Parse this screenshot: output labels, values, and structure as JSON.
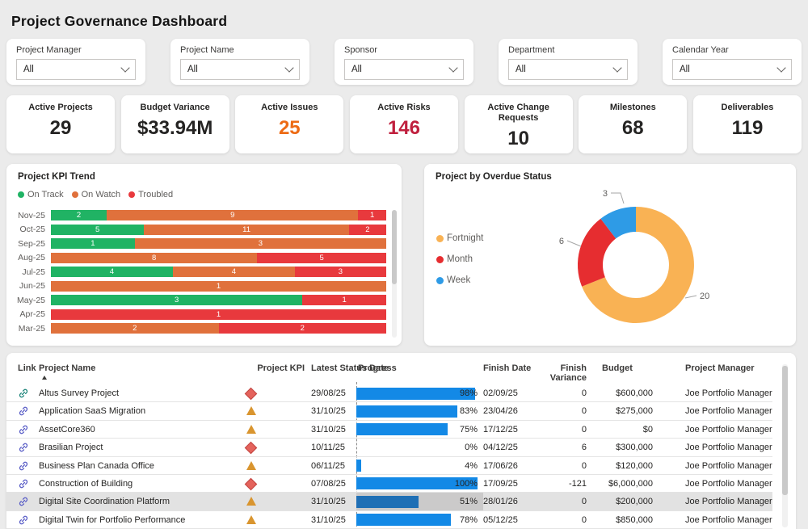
{
  "title": "Project Governance Dashboard",
  "filters": [
    {
      "label": "Project Manager",
      "value": "All"
    },
    {
      "label": "Project Name",
      "value": "All"
    },
    {
      "label": "Sponsor",
      "value": "All"
    },
    {
      "label": "Department",
      "value": "All"
    },
    {
      "label": "Calendar Year",
      "value": "All"
    }
  ],
  "kpis": [
    {
      "label": "Active Projects",
      "value": "29",
      "color": "#252423"
    },
    {
      "label": "Budget Variance",
      "value": "$33.94M",
      "color": "#252423"
    },
    {
      "label": "Active Issues",
      "value": "25",
      "color": "#ED6B15"
    },
    {
      "label": "Active Risks",
      "value": "146",
      "color": "#C0203E"
    },
    {
      "label": "Active Change Requests",
      "value": "10",
      "color": "#252423"
    },
    {
      "label": "Milestones",
      "value": "68",
      "color": "#252423"
    },
    {
      "label": "Deliverables",
      "value": "119",
      "color": "#252423"
    }
  ],
  "kpi_trend": {
    "title": "Project KPI Trend",
    "legend": [
      {
        "label": "On Track",
        "color": "#20B364"
      },
      {
        "label": "On Watch",
        "color": "#E0713C"
      },
      {
        "label": "Troubled",
        "color": "#E8393D"
      }
    ],
    "rows": [
      {
        "month": "Nov-25",
        "on_track": 2,
        "on_watch": 9,
        "troubled": 1
      },
      {
        "month": "Oct-25",
        "on_track": 5,
        "on_watch": 11,
        "troubled": 2
      },
      {
        "month": "Sep-25",
        "on_track": 1,
        "on_watch": 3,
        "troubled": 0
      },
      {
        "month": "Aug-25",
        "on_track": 0,
        "on_watch": 8,
        "troubled": 5
      },
      {
        "month": "Jul-25",
        "on_track": 4,
        "on_watch": 4,
        "troubled": 3
      },
      {
        "month": "Jun-25",
        "on_track": 0,
        "on_watch": 1,
        "troubled": 0
      },
      {
        "month": "May-25",
        "on_track": 3,
        "on_watch": 0,
        "troubled": 1
      },
      {
        "month": "Apr-25",
        "on_track": 0,
        "on_watch": 0,
        "troubled": 1
      },
      {
        "month": "Mar-25",
        "on_track": 0,
        "on_watch": 2,
        "troubled": 2
      }
    ]
  },
  "overdue": {
    "title": "Project by Overdue Status",
    "legend": [
      {
        "label": "Fortnight",
        "color": "#F9B254",
        "value": "20"
      },
      {
        "label": "Month",
        "color": "#E62D30",
        "value": "6"
      },
      {
        "label": "Week",
        "color": "#2E9BE6",
        "value": "3"
      }
    ]
  },
  "table": {
    "columns": [
      "Link",
      "Project Name",
      "Project KPI",
      "Latest Status Date",
      "Progress",
      "Finish Date",
      "Finish Variance",
      "Budget",
      "Project Manager"
    ],
    "rows": [
      {
        "project_name": "Altus Survey Project",
        "kpi": "diamond",
        "status_date": "29/08/25",
        "progress": 98,
        "progress_label": "98%",
        "finish_date": "02/09/25",
        "finish_variance": "0",
        "budget": "$600,000",
        "project_manager": "Joe Portfolio Manager",
        "link_color": "#1F857B",
        "selected": false
      },
      {
        "project_name": "Application SaaS Migration",
        "kpi": "triangle",
        "status_date": "31/10/25",
        "progress": 83,
        "progress_label": "83%",
        "finish_date": "23/04/26",
        "finish_variance": "0",
        "budget": "$275,000",
        "project_manager": "Joe Portfolio Manager",
        "link_color": "#5B5FC7",
        "selected": false
      },
      {
        "project_name": "AssetCore360",
        "kpi": "triangle",
        "status_date": "31/10/25",
        "progress": 75,
        "progress_label": "75%",
        "finish_date": "17/12/25",
        "finish_variance": "0",
        "budget": "$0",
        "project_manager": "Joe Portfolio Manager",
        "link_color": "#5B5FC7",
        "selected": false
      },
      {
        "project_name": "Brasilian Project",
        "kpi": "diamond",
        "status_date": "10/11/25",
        "progress": 0,
        "progress_label": "0%",
        "finish_date": "04/12/25",
        "finish_variance": "6",
        "budget": "$300,000",
        "project_manager": "Joe Portfolio Manager",
        "link_color": "#5B5FC7",
        "selected": false
      },
      {
        "project_name": "Business Plan Canada Office",
        "kpi": "triangle",
        "status_date": "06/11/25",
        "progress": 4,
        "progress_label": "4%",
        "finish_date": "17/06/26",
        "finish_variance": "0",
        "budget": "$120,000",
        "project_manager": "Joe Portfolio Manager",
        "link_color": "#5B5FC7",
        "selected": false
      },
      {
        "project_name": "Construction of Building",
        "kpi": "diamond",
        "status_date": "07/08/25",
        "progress": 100,
        "progress_label": "100%",
        "finish_date": "17/09/25",
        "finish_variance": "-121",
        "budget": "$6,000,000",
        "project_manager": "Joe Portfolio Manager",
        "link_color": "#5B5FC7",
        "selected": false
      },
      {
        "project_name": "Digital Site Coordination Platform",
        "kpi": "triangle",
        "status_date": "31/10/25",
        "progress": 51,
        "progress_label": "51%",
        "finish_date": "28/01/26",
        "finish_variance": "0",
        "budget": "$200,000",
        "project_manager": "Joe Portfolio Manager",
        "link_color": "#5B5FC7",
        "selected": true
      },
      {
        "project_name": "Digital Twin for Portfolio Performance",
        "kpi": "triangle",
        "status_date": "31/10/25",
        "progress": 78,
        "progress_label": "78%",
        "finish_date": "05/12/25",
        "finish_variance": "0",
        "budget": "$850,000",
        "project_manager": "Joe Portfolio Manager",
        "link_color": "#5B5FC7",
        "selected": false
      }
    ]
  },
  "chart_data": [
    {
      "type": "bar",
      "subtype": "stacked-100-horizontal",
      "title": "Project KPI Trend",
      "categories": [
        "Nov-25",
        "Oct-25",
        "Sep-25",
        "Aug-25",
        "Jul-25",
        "Jun-25",
        "May-25",
        "Apr-25",
        "Mar-25"
      ],
      "series": [
        {
          "name": "On Track",
          "color": "#20B364",
          "values": [
            2,
            5,
            1,
            0,
            4,
            0,
            3,
            0,
            0
          ]
        },
        {
          "name": "On Watch",
          "color": "#E0713C",
          "values": [
            9,
            11,
            3,
            8,
            4,
            1,
            0,
            0,
            2
          ]
        },
        {
          "name": "Troubled",
          "color": "#E8393D",
          "values": [
            1,
            2,
            0,
            5,
            3,
            0,
            1,
            1,
            2
          ]
        }
      ],
      "legend_position": "top",
      "grid": false
    },
    {
      "type": "pie",
      "subtype": "donut",
      "title": "Project by Overdue Status",
      "categories": [
        "Fortnight",
        "Month",
        "Week"
      ],
      "values": [
        20,
        6,
        3
      ],
      "colors": [
        "#F9B254",
        "#E62D30",
        "#2E9BE6"
      ],
      "legend_position": "left"
    }
  ]
}
